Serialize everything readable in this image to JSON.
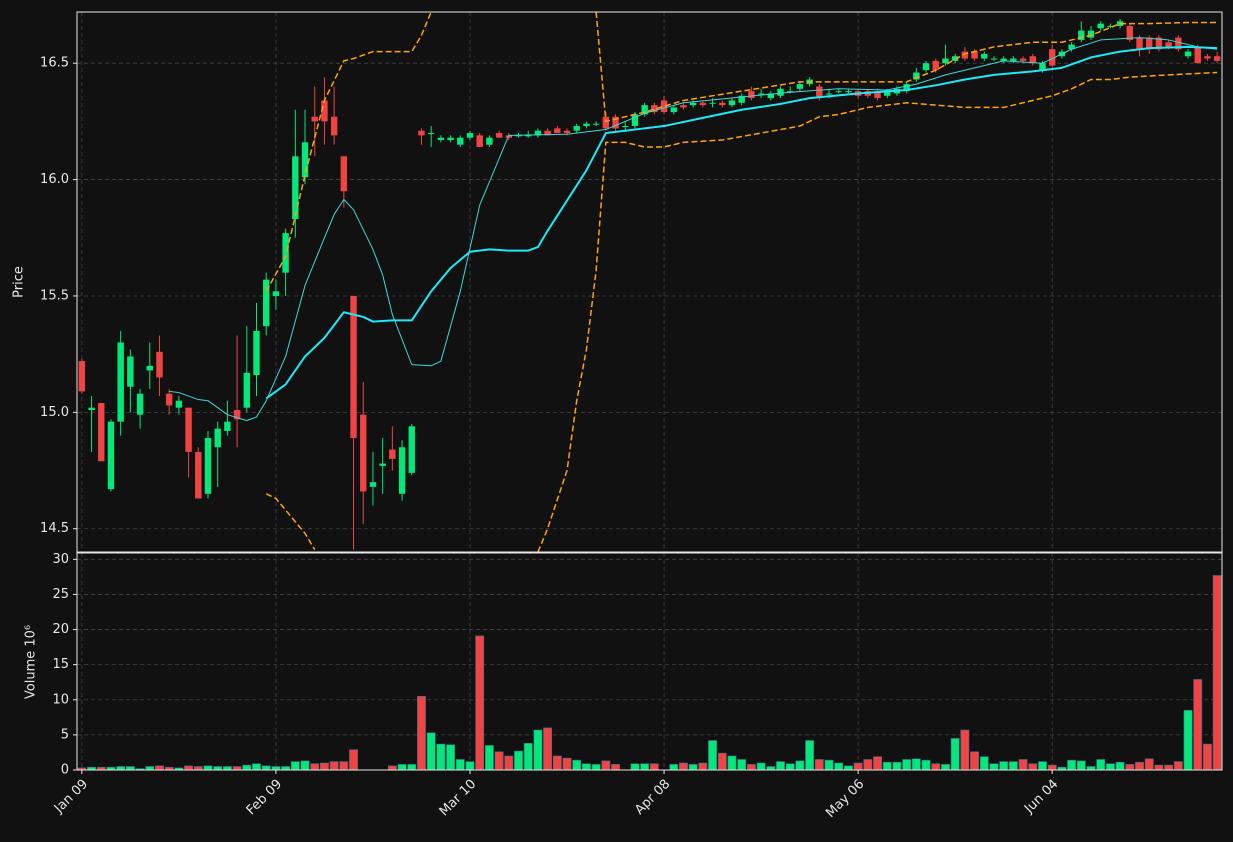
{
  "chart_data": {
    "type": "candlestick",
    "xlim": [
      -0.5,
      117.5
    ],
    "xticks": [
      {
        "value": 0,
        "label": "Jan 09"
      },
      {
        "value": 20,
        "label": "Feb 09"
      },
      {
        "value": 40,
        "label": "Mar 10"
      },
      {
        "value": 60,
        "label": "Apr 08"
      },
      {
        "value": 80,
        "label": "May 06"
      },
      {
        "value": 100,
        "label": "Jun 04"
      }
    ],
    "ylabel": "Price",
    "ylim": [
      14.4,
      16.72
    ],
    "yticks": [
      14.5,
      {
        "value": 15,
        "label": "15.0"
      },
      15.5,
      {
        "value": 16,
        "label": "16.0"
      },
      16.5
    ],
    "grid": true,
    "up_color": "#00e87a",
    "down_color": "#f04444",
    "open": [
      15.22,
      15.01,
      15.04,
      14.67,
      14.96,
      15.11,
      14.99,
      15.18,
      15.26,
      15.08,
      15.02,
      15.02,
      14.83,
      14.65,
      14.85,
      14.92,
      15.01,
      15.02,
      15.16,
      15.37,
      15.5,
      15.6,
      15.83,
      16.01,
      16.27,
      16.34,
      16.27,
      16.1,
      15.5,
      14.99,
      14.68,
      14.77,
      14.84,
      14.65,
      14.74,
      16.21,
      16.2,
      16.17,
      16.17,
      16.15,
      16.18,
      16.19,
      16.15,
      16.2,
      16.19,
      16.19,
      16.19,
      16.19,
      16.21,
      16.22,
      16.21,
      16.21,
      16.23,
      16.24,
      16.27,
      16.27,
      16.23,
      16.23,
      16.28,
      16.32,
      16.34,
      16.29,
      16.32,
      16.32,
      16.33,
      16.33,
      16.33,
      16.32,
      16.33,
      16.38,
      16.37,
      16.35,
      16.36,
      16.38,
      16.39,
      16.41,
      16.4,
      16.37,
      16.38,
      16.38,
      16.38,
      16.38,
      16.38,
      16.36,
      16.37,
      16.38,
      16.43,
      16.47,
      16.51,
      16.5,
      16.51,
      16.55,
      16.55,
      16.52,
      16.52,
      16.51,
      16.51,
      16.52,
      16.53,
      16.47,
      16.56,
      16.53,
      16.56,
      16.6,
      16.61,
      16.65,
      16.66,
      16.66,
      16.66,
      16.61,
      16.61,
      16.61,
      16.59,
      16.61,
      16.53,
      16.57,
      16.53,
      16.53
    ],
    "high": [
      15.23,
      15.07,
      15.04,
      14.97,
      15.35,
      15.27,
      15.1,
      15.3,
      15.33,
      15.1,
      15.07,
      15.02,
      14.85,
      14.92,
      14.96,
      15.05,
      15.33,
      15.37,
      15.47,
      15.6,
      15.57,
      15.79,
      16.3,
      16.3,
      16.4,
      16.44,
      16.4,
      16.1,
      15.5,
      15.13,
      14.83,
      14.89,
      14.94,
      14.88,
      14.95,
      16.22,
      16.23,
      16.19,
      16.19,
      16.19,
      16.21,
      16.2,
      16.19,
      16.21,
      16.2,
      16.2,
      16.21,
      16.22,
      16.22,
      16.23,
      16.22,
      16.24,
      16.25,
      16.25,
      16.29,
      16.28,
      16.25,
      16.29,
      16.33,
      16.33,
      16.36,
      16.32,
      16.33,
      16.34,
      16.34,
      16.35,
      16.34,
      16.35,
      16.37,
      16.4,
      16.39,
      16.38,
      16.4,
      16.4,
      16.42,
      16.44,
      16.41,
      16.39,
      16.39,
      16.39,
      16.39,
      16.39,
      16.39,
      16.39,
      16.4,
      16.42,
      16.48,
      16.51,
      16.52,
      16.58,
      16.54,
      16.57,
      16.56,
      16.55,
      16.53,
      16.53,
      16.53,
      16.53,
      16.54,
      16.51,
      16.58,
      16.56,
      16.59,
      16.68,
      16.66,
      16.68,
      16.67,
      16.69,
      16.67,
      16.62,
      16.62,
      16.62,
      16.6,
      16.62,
      16.56,
      16.58,
      16.54,
      16.55
    ],
    "low": [
      15.08,
      14.83,
      14.79,
      14.66,
      14.9,
      15.0,
      14.93,
      15.1,
      15.07,
      14.99,
      14.99,
      14.72,
      14.63,
      14.63,
      14.68,
      14.9,
      14.85,
      15.0,
      15.07,
      15.33,
      15.44,
      15.5,
      15.75,
      15.98,
      16.1,
      16.15,
      16.15,
      15.88,
      14.41,
      14.52,
      14.6,
      14.65,
      14.75,
      14.62,
      14.73,
      16.15,
      16.14,
      16.16,
      16.16,
      16.14,
      16.17,
      16.14,
      16.14,
      16.18,
      16.17,
      16.18,
      16.18,
      16.18,
      16.19,
      16.2,
      16.19,
      16.2,
      16.22,
      16.23,
      16.21,
      16.21,
      16.21,
      16.22,
      16.27,
      16.28,
      16.28,
      16.28,
      16.3,
      16.31,
      16.31,
      16.31,
      16.31,
      16.31,
      16.32,
      16.34,
      16.35,
      16.34,
      16.35,
      16.37,
      16.38,
      16.4,
      16.34,
      16.35,
      16.37,
      16.37,
      16.35,
      16.35,
      16.34,
      16.35,
      16.36,
      16.37,
      16.42,
      16.46,
      16.46,
      16.49,
      16.5,
      16.51,
      16.51,
      16.51,
      16.51,
      16.5,
      16.5,
      16.5,
      16.49,
      16.46,
      16.48,
      16.52,
      16.55,
      16.59,
      16.6,
      16.64,
      16.65,
      16.65,
      16.59,
      16.53,
      16.54,
      16.55,
      16.56,
      16.55,
      16.52,
      16.5,
      16.51,
      16.5
    ],
    "close": [
      15.09,
      15.02,
      14.79,
      14.96,
      15.3,
      15.24,
      15.08,
      15.2,
      15.15,
      15.03,
      15.05,
      14.83,
      14.63,
      14.89,
      14.93,
      14.96,
      14.97,
      15.17,
      15.35,
      15.57,
      15.52,
      15.77,
      16.1,
      16.16,
      16.25,
      16.25,
      16.19,
      15.95,
      14.89,
      14.66,
      14.7,
      14.78,
      14.8,
      14.85,
      14.94,
      16.19,
      16.2,
      16.18,
      16.18,
      16.18,
      16.2,
      16.14,
      16.18,
      16.18,
      16.18,
      16.19,
      16.19,
      16.21,
      16.19,
      16.2,
      16.2,
      16.23,
      16.24,
      16.24,
      16.22,
      16.22,
      16.23,
      16.28,
      16.32,
      16.29,
      16.29,
      16.31,
      16.31,
      16.33,
      16.32,
      16.33,
      16.32,
      16.34,
      16.36,
      16.35,
      16.37,
      16.37,
      16.39,
      16.38,
      16.41,
      16.43,
      16.35,
      16.37,
      16.38,
      16.38,
      16.36,
      16.36,
      16.35,
      16.38,
      16.39,
      16.41,
      16.46,
      16.5,
      16.47,
      16.52,
      16.53,
      16.52,
      16.52,
      16.54,
      16.52,
      16.52,
      16.52,
      16.51,
      16.5,
      16.5,
      16.49,
      16.55,
      16.58,
      16.64,
      16.64,
      16.67,
      16.66,
      16.68,
      16.6,
      16.56,
      16.56,
      16.56,
      16.57,
      16.56,
      16.55,
      16.5,
      16.52,
      16.51
    ],
    "lines": [
      {
        "color": "#3fd8d8",
        "linestyle": "solid",
        "x": [
          9,
          10,
          12,
          13,
          15,
          17,
          18,
          19,
          21,
          23,
          25,
          26,
          27,
          28,
          30,
          31,
          32,
          34,
          36,
          37,
          39,
          41,
          44,
          50,
          54,
          58,
          62,
          68,
          73,
          78,
          83,
          86,
          89,
          92,
          95,
          99,
          102,
          105,
          109,
          112,
          115,
          117
        ],
        "values": [
          15.09,
          15.085,
          15.055,
          15.05,
          14.99,
          14.965,
          14.98,
          15.05,
          15.24,
          15.545,
          15.75,
          15.85,
          15.915,
          15.87,
          15.7,
          15.59,
          15.42,
          15.205,
          15.2,
          15.22,
          15.52,
          15.89,
          16.19,
          16.195,
          16.215,
          16.285,
          16.33,
          16.355,
          16.375,
          16.39,
          16.385,
          16.41,
          16.45,
          16.48,
          16.51,
          16.5,
          16.56,
          16.6,
          16.61,
          16.6,
          16.57,
          16.56
        ]
      },
      {
        "color": "#1ee9f7",
        "linestyle": "solid",
        "x": [
          19,
          21,
          23,
          25,
          27,
          29,
          30,
          32,
          34,
          36,
          38,
          40,
          42,
          44,
          46,
          47,
          48,
          50,
          52,
          54,
          56,
          60,
          64,
          68,
          72,
          75,
          80,
          85,
          88,
          91,
          94,
          98,
          101,
          104,
          107,
          110,
          114,
          117
        ],
        "values": [
          15.06,
          15.12,
          15.24,
          15.32,
          15.43,
          15.41,
          15.39,
          15.395,
          15.395,
          15.52,
          15.62,
          15.69,
          15.7,
          15.695,
          15.695,
          15.71,
          15.78,
          15.91,
          16.04,
          16.2,
          16.21,
          16.23,
          16.265,
          16.3,
          16.325,
          16.35,
          16.37,
          16.385,
          16.405,
          16.43,
          16.45,
          16.465,
          16.48,
          16.525,
          16.55,
          16.565,
          16.57,
          16.565
        ]
      },
      {
        "color": "#ffa500",
        "linestyle": "dashed",
        "x": [
          19,
          21,
          23,
          25,
          27,
          28,
          30,
          32,
          34,
          35,
          36,
          44,
          53,
          54,
          56,
          58,
          62,
          68,
          74,
          80,
          85,
          88,
          91,
          94,
          98,
          101,
          104,
          107,
          110,
          114,
          117
        ],
        "values": [
          15.52,
          15.67,
          16.02,
          16.34,
          16.51,
          16.52,
          16.55,
          16.55,
          16.55,
          16.62,
          16.72,
          null,
          16.72,
          16.25,
          16.27,
          16.29,
          16.34,
          16.38,
          16.42,
          16.42,
          16.42,
          16.47,
          16.54,
          16.57,
          16.59,
          16.59,
          16.62,
          16.67,
          16.67,
          16.675,
          16.675
        ]
      },
      {
        "color": "#ffa500",
        "linestyle": "dashed",
        "x": [
          19,
          20,
          23,
          24,
          35,
          47,
          48,
          50,
          51,
          52,
          53,
          54,
          56,
          58,
          60,
          62,
          66,
          70,
          74,
          76,
          78,
          81,
          85,
          88,
          91,
          95,
          97,
          100,
          102,
          104,
          106,
          108,
          112,
          117
        ],
        "values": [
          14.65,
          14.63,
          14.48,
          14.41,
          null,
          14.4,
          14.5,
          14.75,
          15.05,
          15.27,
          15.61,
          16.16,
          16.16,
          16.14,
          16.14,
          16.16,
          16.17,
          16.2,
          16.23,
          16.27,
          16.28,
          16.31,
          16.33,
          16.32,
          16.31,
          16.31,
          16.33,
          16.36,
          16.39,
          16.43,
          16.43,
          16.44,
          16.45,
          16.46
        ]
      }
    ],
    "volume_ylabel": "Volume  10⁶",
    "volume_ylim": [
      0,
      30.9
    ],
    "volume_yticks": [
      0,
      5,
      10,
      15,
      20,
      25,
      30
    ],
    "volume": [
      0.3,
      0.4,
      0.4,
      0.4,
      0.5,
      0.5,
      0.2,
      0.5,
      0.6,
      0.4,
      0.3,
      0.6,
      0.5,
      0.6,
      0.5,
      0.5,
      0.5,
      0.7,
      0.9,
      0.6,
      0.5,
      0.5,
      1.2,
      1.3,
      0.9,
      1.0,
      1.2,
      1.2,
      2.9,
      0,
      0,
      0,
      0.6,
      0.8,
      0.8,
      10.5,
      5.3,
      3.7,
      3.6,
      1.5,
      1.2,
      19.1,
      3.5,
      2.6,
      2.0,
      2.7,
      3.8,
      5.7,
      6.0,
      2.0,
      1.7,
      1.4,
      0.9,
      0.8,
      1.3,
      0.8,
      0,
      0.9,
      0.9,
      0.9,
      0,
      0.8,
      1.0,
      0.8,
      1.0,
      4.2,
      2.4,
      2.0,
      1.5,
      0.8,
      1.0,
      0.5,
      1.2,
      0.9,
      1.3,
      4.2,
      1.5,
      1.4,
      1.0,
      0.6,
      1.0,
      1.5,
      1.9,
      1.1,
      1.1,
      1.5,
      1.6,
      1.4,
      0.9,
      0.8,
      4.5,
      5.7,
      2.6,
      1.9,
      0.9,
      1.2,
      1.2,
      1.5,
      0.9,
      1.2,
      0.7,
      0.4,
      1.4,
      1.3,
      0.5,
      1.5,
      0.9,
      1.1,
      0.8,
      1.1,
      1.6,
      0.7,
      0.7,
      1.2,
      8.5,
      12.9,
      3.7,
      27.7
    ]
  }
}
